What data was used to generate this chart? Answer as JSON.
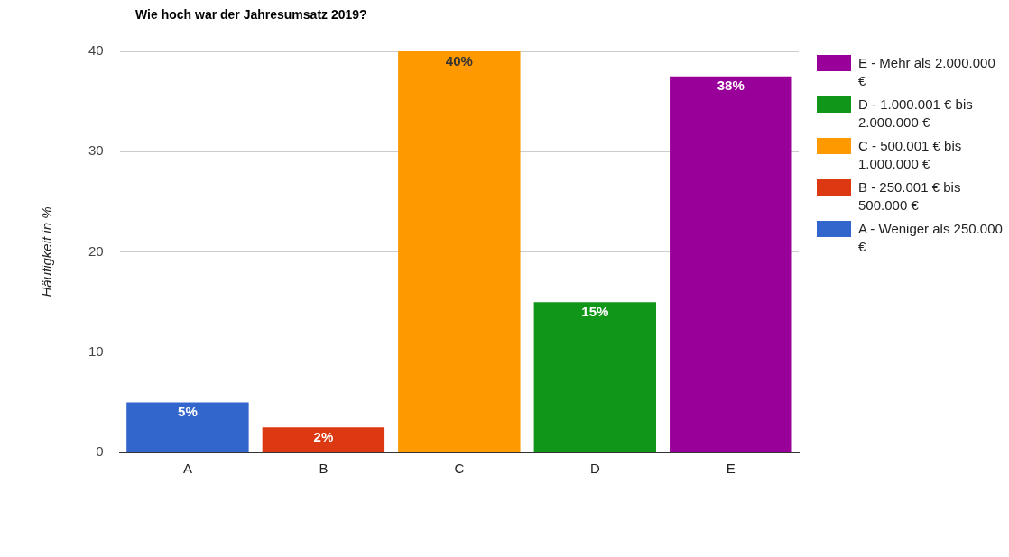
{
  "chart_data": {
    "type": "bar",
    "title": "Wie hoch war der Jahresumsatz 2019?",
    "ylabel": "Häufigkeit in %",
    "categories": [
      "A",
      "B",
      "C",
      "D",
      "E"
    ],
    "stacked": true,
    "series": [
      {
        "name": "A - Weniger als 250.000 €",
        "color": "#3366cc",
        "values": [
          5,
          null,
          null,
          null,
          null
        ],
        "value_labels": [
          "5%",
          null,
          null,
          null,
          null
        ]
      },
      {
        "name": "B - 250.001 € bis 500.000 €",
        "color": "#dc3912",
        "values": [
          null,
          2.5,
          null,
          null,
          null
        ],
        "value_labels": [
          null,
          "2%",
          null,
          null,
          null
        ]
      },
      {
        "name": "C - 500.001 € bis 1.000.000 €",
        "color": "#ff9900",
        "values": [
          null,
          null,
          40,
          null,
          null
        ],
        "value_labels": [
          null,
          null,
          "40%",
          null,
          null
        ]
      },
      {
        "name": "D - 1.000.001 € bis 2.000.000 €",
        "color": "#109618",
        "values": [
          null,
          null,
          null,
          15,
          null
        ],
        "value_labels": [
          null,
          null,
          null,
          "15%",
          null
        ]
      },
      {
        "name": "E - Mehr als 2.000.000 €",
        "color": "#990099",
        "values": [
          null,
          null,
          null,
          null,
          37.5
        ],
        "value_labels": [
          null,
          null,
          null,
          null,
          "38%"
        ]
      }
    ],
    "ylim": [
      0,
      40
    ],
    "yticks": [
      0,
      10,
      20,
      30,
      40
    ],
    "grid": "y",
    "legend": "right"
  }
}
